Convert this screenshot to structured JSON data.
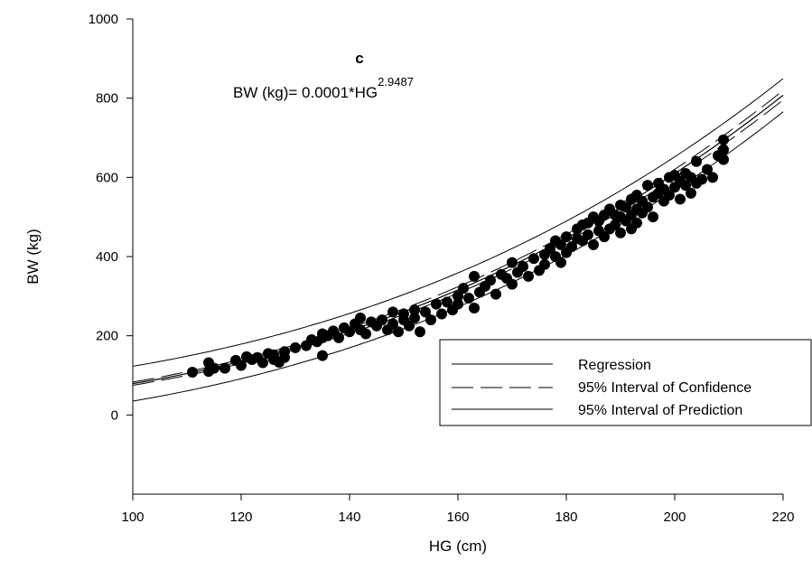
{
  "chart_data": {
    "type": "scatter",
    "panel_label": "c",
    "equation": {
      "text": "BW (kg)= 0.0001*HG",
      "exponent": "2.9487"
    },
    "xlabel": "HG (cm)",
    "ylabel": "BW (kg)",
    "xlim": [
      100,
      220
    ],
    "ylim": [
      -200,
      1000
    ],
    "x_ticks": [
      100,
      120,
      140,
      160,
      180,
      200,
      220
    ],
    "y_ticks": [
      0,
      200,
      400,
      600,
      800,
      1000
    ],
    "grid": false,
    "legend_position": "bottom-right",
    "model": {
      "coefficient": 0.0001,
      "exponent": 2.9487
    },
    "series": [
      {
        "name": "Regression",
        "kind": "curve",
        "style": "solid",
        "x_range": [
          100,
          220
        ],
        "multiplier": 1.0,
        "offset_at_100": 0,
        "offset_at_220": 0
      },
      {
        "name": "95% Interval of Confidence",
        "kind": "band",
        "style": "dashed",
        "x_range": [
          100,
          220
        ],
        "half_width_at_100": 4,
        "half_width_at_220": 12
      },
      {
        "name": "95% Interval of Prediction",
        "kind": "band",
        "style": "solid",
        "x_range": [
          100,
          220
        ],
        "half_width_at_100": 44,
        "half_width_at_220": 42
      }
    ],
    "points": {
      "x": [
        111,
        114,
        114,
        115,
        117,
        119,
        120,
        121,
        122,
        123,
        124,
        125,
        126,
        126,
        127,
        128,
        128,
        130,
        132,
        133,
        134,
        135,
        135,
        135,
        136,
        137,
        138,
        139,
        140,
        141,
        142,
        142,
        143,
        144,
        145,
        146,
        147,
        148,
        148,
        149,
        150,
        150,
        151,
        152,
        152,
        153,
        154,
        155,
        156,
        157,
        158,
        159,
        160,
        160,
        161,
        162,
        163,
        163,
        164,
        165,
        166,
        167,
        168,
        169,
        170,
        170,
        171,
        172,
        173,
        174,
        175,
        176,
        176,
        177,
        178,
        178,
        179,
        179,
        180,
        180,
        181,
        182,
        182,
        183,
        183,
        184,
        184,
        185,
        185,
        186,
        186,
        187,
        187,
        188,
        188,
        189,
        189,
        190,
        190,
        190,
        191,
        191,
        192,
        192,
        192,
        193,
        193,
        193,
        194,
        194,
        195,
        195,
        196,
        196,
        197,
        197,
        198,
        198,
        199,
        199,
        200,
        200,
        201,
        201,
        202,
        202,
        203,
        203,
        204,
        204,
        205,
        206,
        207,
        208,
        209,
        209,
        209
      ],
      "y": [
        108,
        132,
        110,
        118,
        118,
        138,
        125,
        147,
        140,
        145,
        132,
        155,
        140,
        152,
        133,
        160,
        145,
        170,
        175,
        190,
        185,
        150,
        205,
        195,
        200,
        212,
        195,
        220,
        210,
        230,
        215,
        245,
        205,
        235,
        225,
        240,
        215,
        230,
        260,
        210,
        255,
        240,
        225,
        265,
        245,
        210,
        260,
        240,
        280,
        255,
        285,
        265,
        300,
        280,
        320,
        295,
        270,
        350,
        310,
        325,
        340,
        305,
        355,
        345,
        385,
        330,
        360,
        375,
        350,
        395,
        365,
        405,
        380,
        420,
        400,
        440,
        385,
        430,
        450,
        410,
        425,
        470,
        445,
        480,
        440,
        485,
        455,
        500,
        430,
        490,
        465,
        505,
        450,
        520,
        470,
        505,
        480,
        530,
        500,
        460,
        525,
        490,
        545,
        505,
        470,
        520,
        555,
        485,
        510,
        540,
        580,
        525,
        550,
        500,
        560,
        585,
        540,
        570,
        600,
        555,
        575,
        605,
        545,
        590,
        580,
        610,
        560,
        600,
        585,
        640,
        595,
        620,
        600,
        655,
        645,
        670,
        695
      ]
    }
  }
}
